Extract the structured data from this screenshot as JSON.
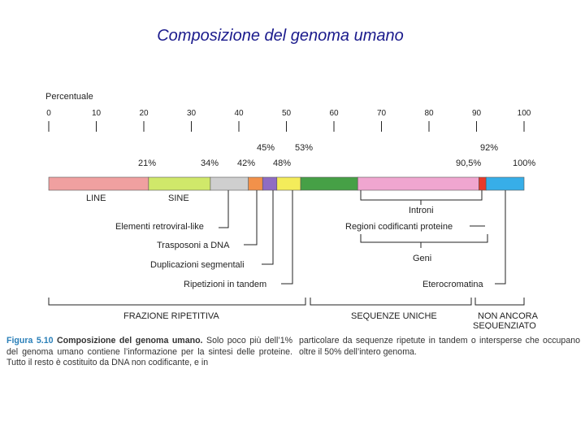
{
  "title": "Composizione del genoma umano",
  "scale": {
    "label": "Percentuale",
    "ticks": [
      "0",
      "10",
      "20",
      "30",
      "40",
      "50",
      "60",
      "70",
      "80",
      "90",
      "100"
    ]
  },
  "segments": [
    {
      "name": "LINE",
      "from": 0,
      "to": 21,
      "color": "#f0a0a0"
    },
    {
      "name": "SINE",
      "from": 21,
      "to": 34,
      "color": "#d0e86a"
    },
    {
      "name": "Elementi retrovirali-like",
      "from": 34,
      "to": 42,
      "color": "#cfcfcf"
    },
    {
      "name": "Trasposoni a DNA",
      "from": 42,
      "to": 45,
      "color": "#f2914a"
    },
    {
      "name": "Duplicazioni segmentali",
      "from": 45,
      "to": 48,
      "color": "#8f6cc2"
    },
    {
      "name": "Ripetizioni in tandem",
      "from": 48,
      "to": 53,
      "color": "#f4ec5a"
    },
    {
      "name": "Regioni codificanti proteine",
      "from": 53,
      "to": 65,
      "color": "#46a046"
    },
    {
      "name": "Introni",
      "from": 65,
      "to": 90.5,
      "color": "#f0a6d0"
    },
    {
      "name": "Eterocromatina",
      "from": 90.5,
      "to": 92,
      "color": "#e83a2a"
    },
    {
      "name": "Non ancora sequenziato",
      "from": 92,
      "to": 100,
      "color": "#37aee8"
    }
  ],
  "percent_labels": {
    "p21": "21%",
    "p34": "34%",
    "p42": "42%",
    "p45": "45%",
    "p48": "48%",
    "p53": "53%",
    "p905": "90,5%",
    "p92": "92%",
    "p100": "100%"
  },
  "labels": {
    "line": "LINE",
    "sine": "SINE",
    "retroviral": "Elementi retroviral-like",
    "dna_transposons": "Trasposoni a DNA",
    "segmental_dup": "Duplicazioni segmentali",
    "tandem": "Ripetizioni in tandem",
    "introns": "Introni",
    "coding": "Regioni codificanti proteine",
    "genes": "Geni",
    "heterochromatin": "Eterocromatina"
  },
  "fractions": {
    "repetitive": "FRAZIONE RIPETITIVA",
    "unique": "SEQUENZE UNICHE",
    "not_sequenced_1": "NON ANCORA",
    "not_sequenced_2": "SEQUENZIATO"
  },
  "caption": {
    "figure_label": "Figura 5.10",
    "figure_title": "Composizione del genoma umano.",
    "left_text": "Solo poco più dell’1% del genoma umano contiene l’informazione per la sintesi delle proteine. Tutto il resto è costituito da DNA non codificante, e in",
    "right_text": "particolare da sequenze ripetute in tandem o intersperse che occupano oltre il 50% dell’intero genoma."
  }
}
